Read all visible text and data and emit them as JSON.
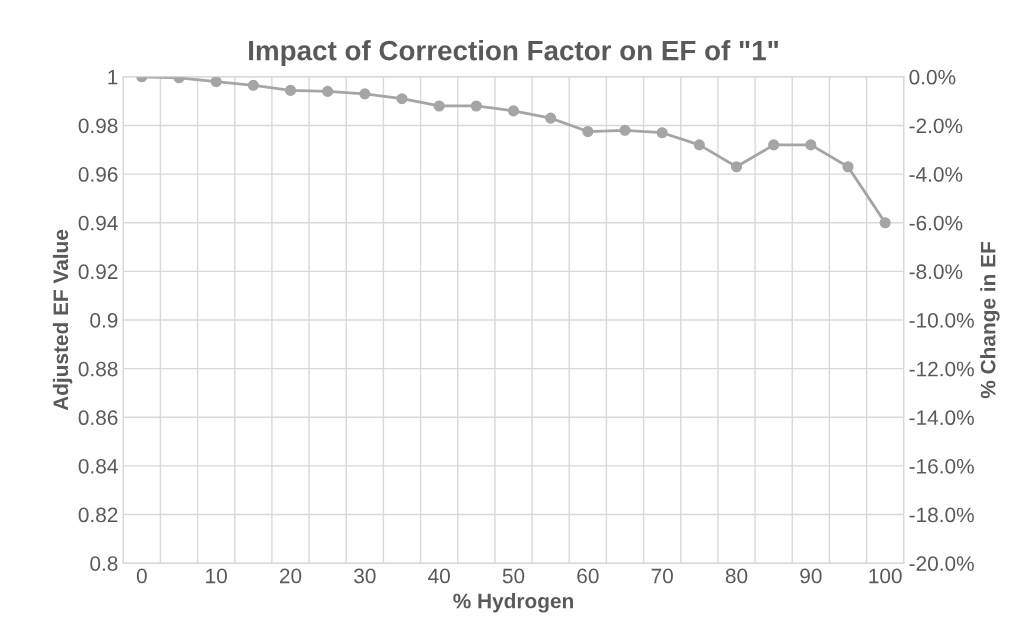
{
  "chart_data": {
    "type": "line",
    "title": "Impact of Correction Factor on EF of \"1\"",
    "xlabel": "% Hydrogen",
    "ylabel": "Adjusted EF Value",
    "y2label": "% Change in EF",
    "categories": [
      "0",
      null,
      "10",
      null,
      "20",
      null,
      "30",
      null,
      "40",
      null,
      "50",
      null,
      "60",
      null,
      "70",
      null,
      "80",
      null,
      "90",
      null,
      "100"
    ],
    "series": [
      {
        "color": "#a5a5a5",
        "values": [
          1.0,
          0.9996,
          0.998,
          0.9965,
          0.9944,
          0.994,
          0.993,
          0.991,
          0.988,
          0.988,
          0.986,
          0.983,
          0.9775,
          0.978,
          0.977,
          0.972,
          0.963,
          0.972,
          0.972,
          0.963,
          0.94
        ]
      }
    ],
    "ylim": [
      0.8,
      1
    ],
    "yticks": [
      0.8,
      0.82,
      0.84,
      0.86,
      0.88,
      0.9,
      0.92,
      0.94,
      0.96,
      0.98,
      1
    ],
    "y2lim": [
      -20,
      0
    ],
    "y2ticks": [
      {
        "value": -20,
        "label": "-20.0%"
      },
      {
        "value": -18,
        "label": "-18.0%"
      },
      {
        "value": -16,
        "label": "-16.0%"
      },
      {
        "value": -14,
        "label": "-14.0%"
      },
      {
        "value": -12,
        "label": "-12.0%"
      },
      {
        "value": -10,
        "label": "-10.0%"
      },
      {
        "value": -8,
        "label": "-8.0%"
      },
      {
        "value": -6,
        "label": "-6.0%"
      },
      {
        "value": -4,
        "label": "-4.0%"
      },
      {
        "value": -2,
        "label": "-2.0%"
      },
      {
        "value": 0,
        "label": "0.0%"
      }
    ],
    "grid": true,
    "marker": "circle",
    "line_style": "solid"
  }
}
